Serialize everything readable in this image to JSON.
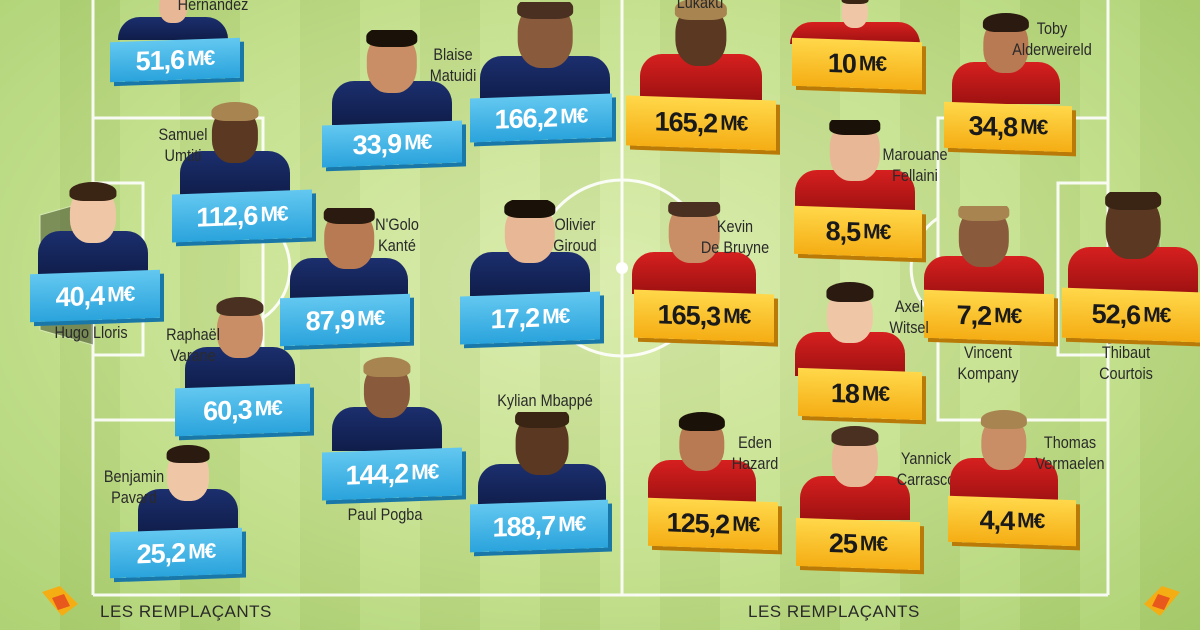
{
  "colors": {
    "france_jersey": "#1c2f6e",
    "belgium_jersey": "#d6201f",
    "france_price": "#2aa3dc",
    "belgium_price": "#f5ad14"
  },
  "france": [
    {
      "key": "hernandez",
      "name_lines": [
        "Hernandez"
      ],
      "price": "51,6",
      "unit": "M€"
    },
    {
      "key": "matuidi",
      "name_lines": [
        "Blaise",
        "Matuidi"
      ],
      "price": "33,9",
      "unit": "M€"
    },
    {
      "key": "griezmann",
      "name_lines": [],
      "price": "166,2",
      "unit": "M€"
    },
    {
      "key": "umtiti",
      "name_lines": [
        "Samuel",
        "Umtiti"
      ],
      "price": "112,6",
      "unit": "M€"
    },
    {
      "key": "lloris",
      "name_lines": [
        "Hugo Lloris"
      ],
      "price": "40,4",
      "unit": "M€"
    },
    {
      "key": "kante",
      "name_lines": [
        "N'Golo",
        "Kanté"
      ],
      "price": "87,9",
      "unit": "M€"
    },
    {
      "key": "giroud",
      "name_lines": [
        "Olivier",
        "Giroud"
      ],
      "price": "17,2",
      "unit": "M€"
    },
    {
      "key": "varane",
      "name_lines": [
        "Raphaël",
        "Varane"
      ],
      "price": "60,3",
      "unit": "M€"
    },
    {
      "key": "pogba",
      "name_lines": [
        "Paul Pogba"
      ],
      "price": "144,2",
      "unit": "M€"
    },
    {
      "key": "mbappe",
      "name_lines": [
        "Kylian Mbappé"
      ],
      "price": "188,7",
      "unit": "M€"
    },
    {
      "key": "pavard",
      "name_lines": [
        "Benjamin",
        "Pavard"
      ],
      "price": "25,2",
      "unit": "M€"
    }
  ],
  "belgium": [
    {
      "key": "lukaku",
      "name_lines": [
        "Lukaku"
      ],
      "price": "165,2",
      "unit": "M€"
    },
    {
      "key": "mertens",
      "name_lines": [],
      "price": "10",
      "unit": "M€"
    },
    {
      "key": "alderweireld",
      "name_lines": [
        "Toby",
        "Alderweireld"
      ],
      "price": "34,8",
      "unit": "M€"
    },
    {
      "key": "fellaini",
      "name_lines": [
        "Marouane",
        "Fellaini"
      ],
      "price": "8,5",
      "unit": "M€"
    },
    {
      "key": "debruyne",
      "name_lines": [
        "Kevin",
        "De Bruyne"
      ],
      "price": "165,3",
      "unit": "M€"
    },
    {
      "key": "kompany",
      "name_lines": [
        "Vincent",
        "Kompany"
      ],
      "price": "7,2",
      "unit": "M€"
    },
    {
      "key": "courtois",
      "name_lines": [
        "Thibaut",
        "Courtois"
      ],
      "price": "52,6",
      "unit": "M€"
    },
    {
      "key": "witsel",
      "name_lines": [
        "Axel",
        "Witsel"
      ],
      "price": "18",
      "unit": "M€"
    },
    {
      "key": "hazard",
      "name_lines": [
        "Eden",
        "Hazard"
      ],
      "price": "125,2",
      "unit": "M€"
    },
    {
      "key": "carrasco",
      "name_lines": [
        "Yannick",
        "Carrasco"
      ],
      "price": "25",
      "unit": "M€"
    },
    {
      "key": "vermaelen",
      "name_lines": [
        "Thomas",
        "Vermaelen"
      ],
      "price": "4,4",
      "unit": "M€"
    }
  ],
  "substitutes_label_left": "LES REMPLAÇANTS",
  "substitutes_label_right": "LES REMPLAÇANTS"
}
